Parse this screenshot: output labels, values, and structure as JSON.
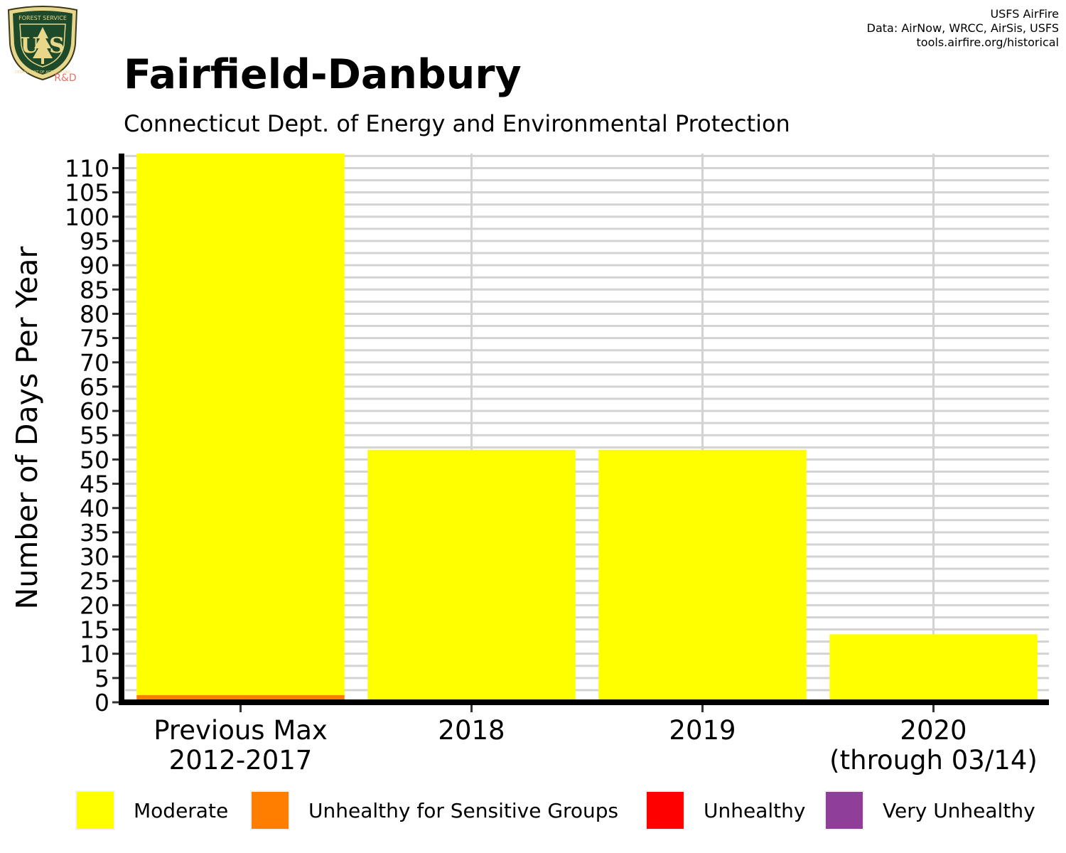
{
  "logo": {
    "icon": "usfs-shield",
    "top_text": "FOREST SERVICE",
    "letters_left": "U",
    "letters_right": "S",
    "bottom_text": "DEPARTMENT OF AGRICULTURE",
    "badge": "R&D"
  },
  "credits": [
    "USFS AirFire",
    "Data: AirNow, WRCC, AirSis, USFS",
    "tools.airfire.org/historical"
  ],
  "chart_data": {
    "type": "bar",
    "stacked": true,
    "title": "Fairfield-Danbury",
    "subtitle": "Connecticut Dept. of Energy and Environmental Protection",
    "ylabel": "Number of Days Per Year",
    "xlabel": "",
    "ylim": [
      0,
      113
    ],
    "yticks": [
      0,
      5,
      10,
      15,
      20,
      25,
      30,
      35,
      40,
      45,
      50,
      55,
      60,
      65,
      70,
      75,
      80,
      85,
      90,
      95,
      100,
      105,
      110
    ],
    "grid": true,
    "legend_position": "bottom",
    "categories": [
      [
        "Previous Max",
        "2012-2017"
      ],
      [
        "2018"
      ],
      [
        "2019"
      ],
      [
        "2020",
        "(through 03/14)"
      ]
    ],
    "series": [
      {
        "name": "Unhealthy for Sensitive Groups",
        "color": "#ff7e00",
        "values": [
          1.5,
          0,
          0,
          0
        ]
      },
      {
        "name": "Moderate",
        "color": "#ffff00",
        "values": [
          111.5,
          52,
          52,
          14
        ]
      }
    ],
    "legend": [
      {
        "name": "Moderate",
        "color": "#ffff00"
      },
      {
        "name": "Unhealthy for Sensitive Groups",
        "color": "#ff7e00"
      },
      {
        "name": "Unhealthy",
        "color": "#ff0000"
      },
      {
        "name": "Very Unhealthy",
        "color": "#8f3f97"
      }
    ]
  }
}
